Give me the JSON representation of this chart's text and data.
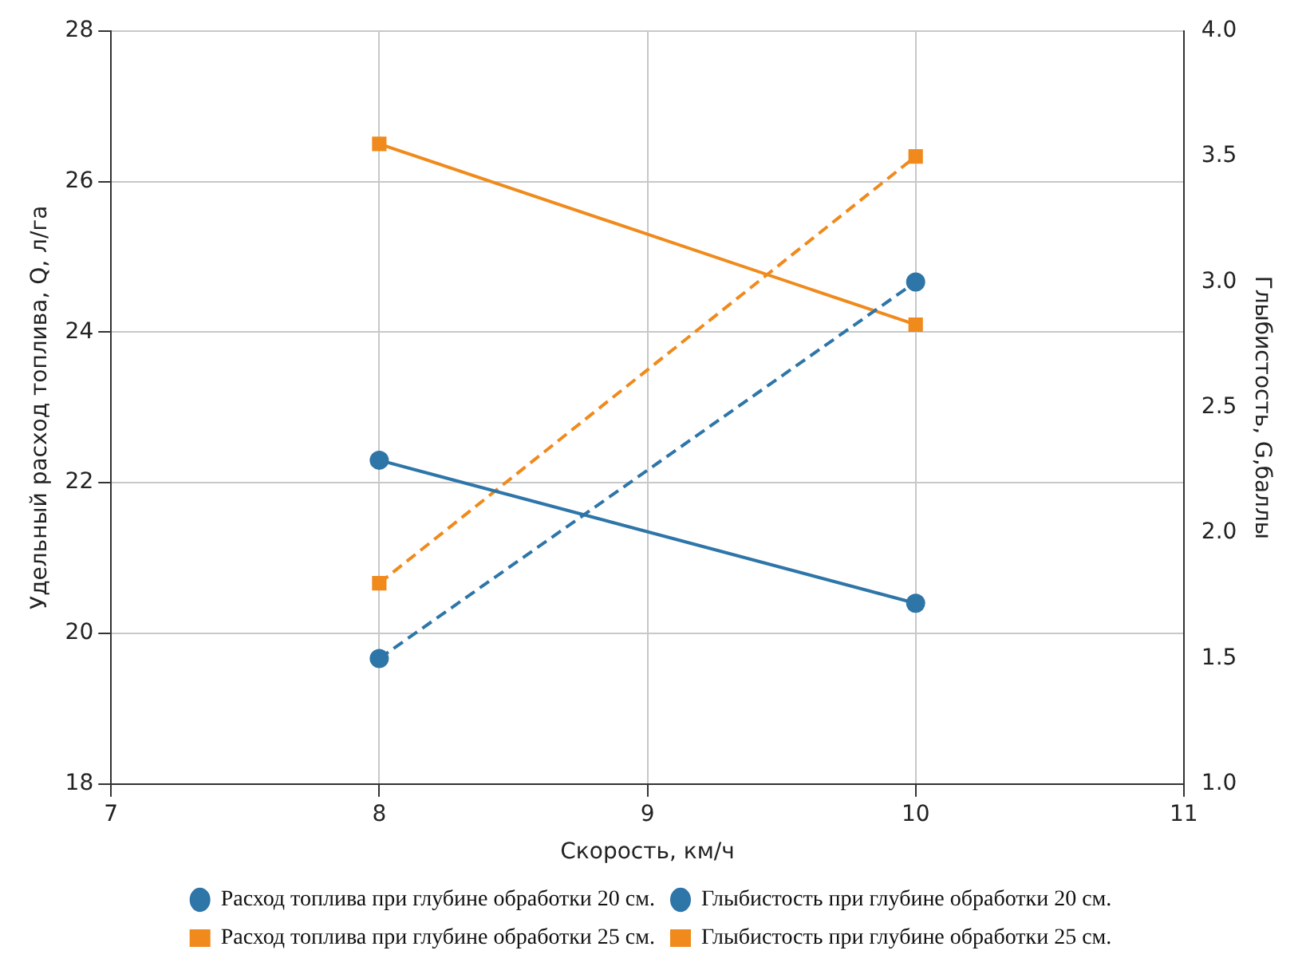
{
  "chart_data": {
    "type": "line",
    "xlabel": "Скорость, км/ч",
    "ylabel": "Удельный расход топлива, Q, л/га",
    "y2label": "Глыбистость, G,баллы",
    "x": [
      8,
      10
    ],
    "xlim": [
      7,
      11
    ],
    "xticks": [
      7,
      8,
      9,
      10,
      11
    ],
    "ylim": [
      18,
      28
    ],
    "yticks": [
      18,
      20,
      22,
      24,
      26,
      28
    ],
    "y2lim": [
      1.0,
      4.0
    ],
    "y2ticks": [
      {
        "value": 1,
        "label": "1.0"
      },
      {
        "value": 1.5,
        "label": "1.5"
      },
      {
        "value": 2,
        "label": "2.0"
      },
      {
        "value": 2.5,
        "label": "2.5"
      },
      {
        "value": 3,
        "label": "3.0"
      },
      {
        "value": 3.5,
        "label": "3.5"
      },
      {
        "value": 4,
        "label": "4.0"
      }
    ],
    "grid": true,
    "legend": "bottom",
    "series": [
      {
        "name": "Расход топлива при глубине обработки 20 см.",
        "color": "#2e75a8",
        "values": [
          22.3,
          20.4
        ],
        "marker": "circle",
        "line_style": "solid"
      },
      {
        "name": "Глыбистость при глубине обработки 20 см.",
        "color": "#2e75a8",
        "values": [
          1.5,
          3.0
        ],
        "marker": "circle",
        "line_style": "dashed",
        "axis": "y2"
      },
      {
        "name": "Расход топлива при глубине обработки 25 см.",
        "color": "#f08a1c",
        "values": [
          26.5,
          24.1
        ],
        "marker": "square",
        "line_style": "solid"
      },
      {
        "name": "Глыбистость при глубине обработки 25 см.",
        "color": "#f08a1c",
        "values": [
          1.8,
          3.5
        ],
        "marker": "square",
        "line_style": "dashed",
        "axis": "y2"
      }
    ]
  }
}
